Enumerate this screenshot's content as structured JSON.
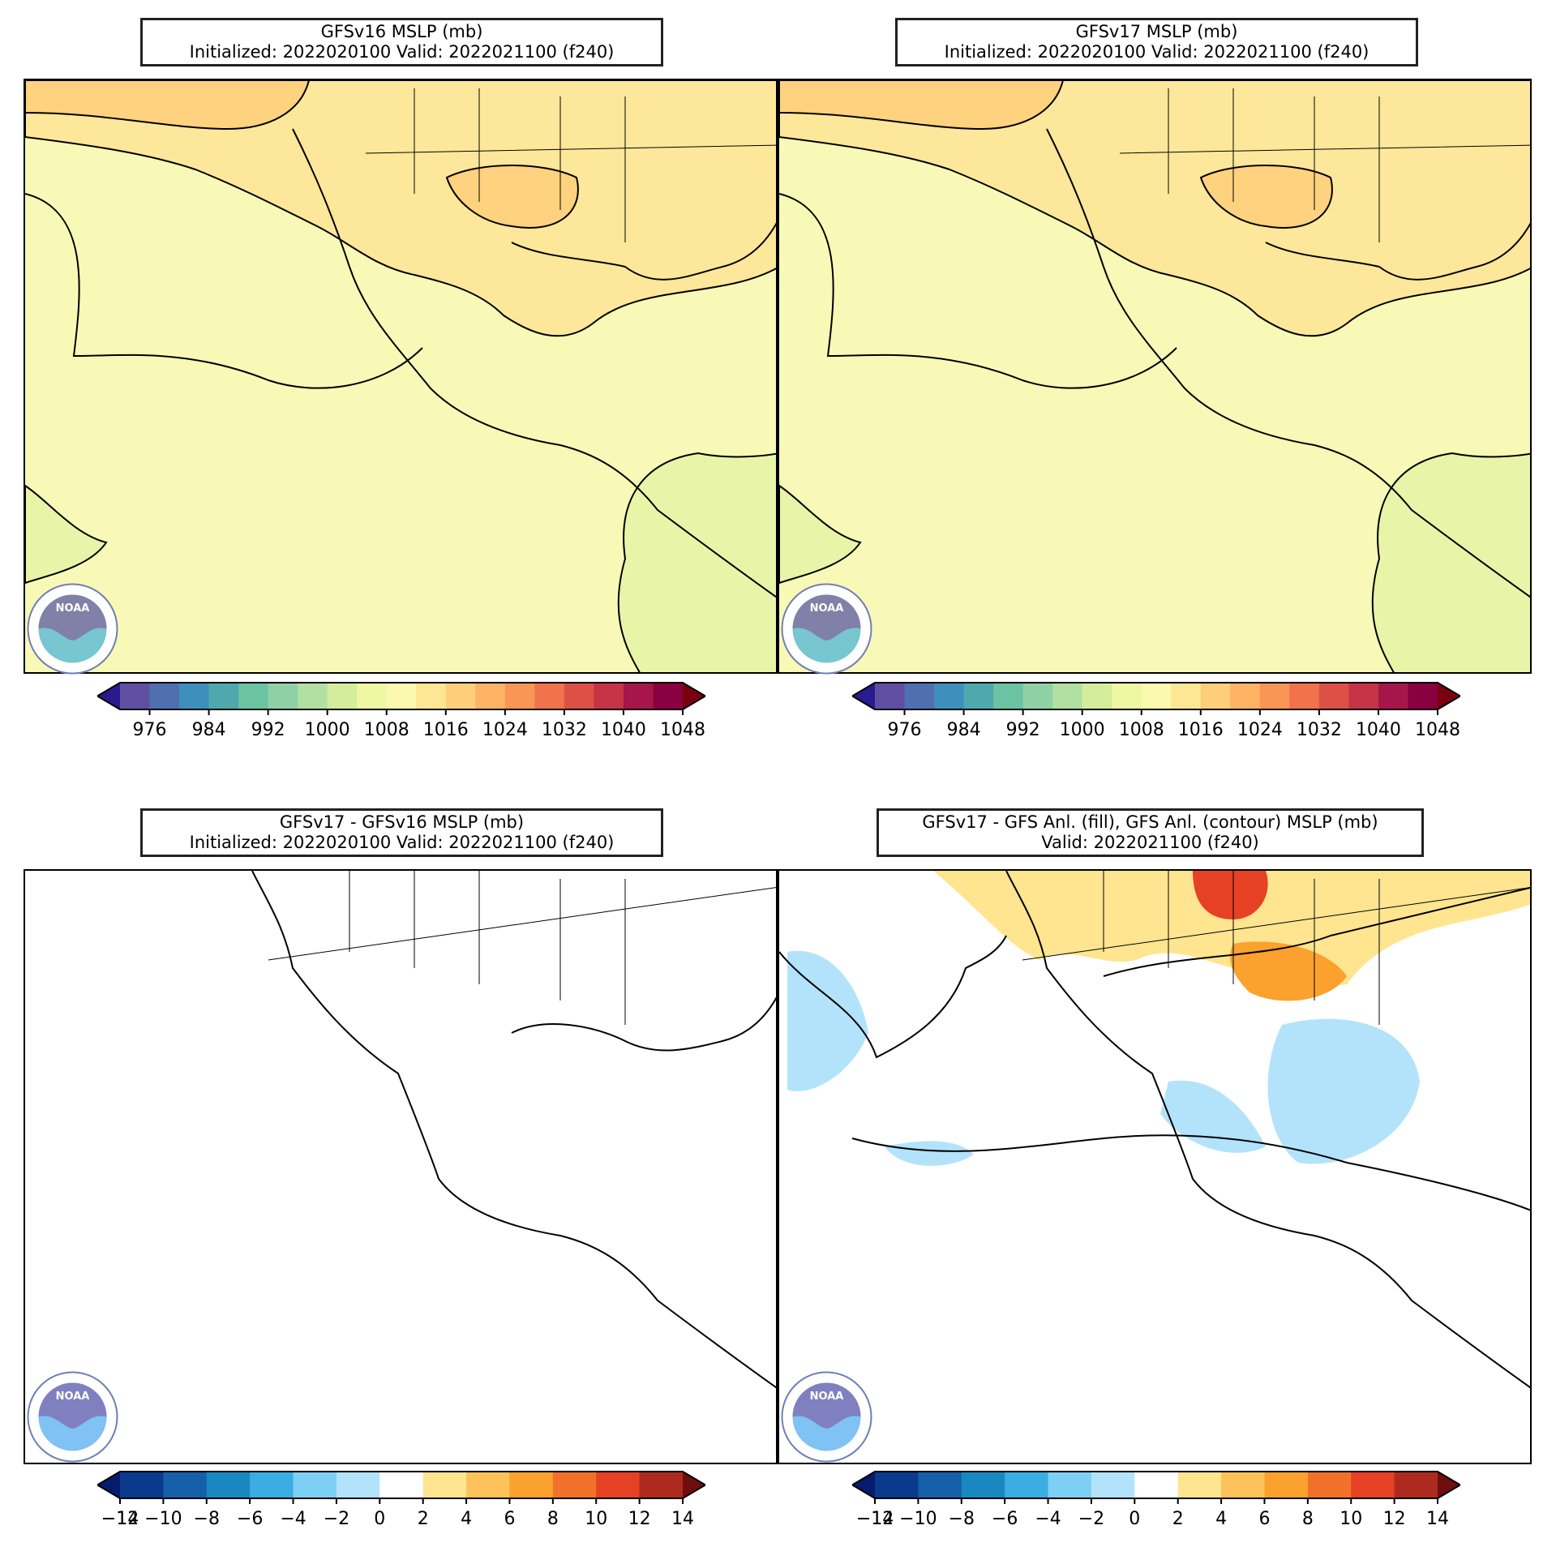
{
  "panels": [
    {
      "title_line1": "GFSv16 MSLP (mb)",
      "title_line2": "Initialized: 2022020100 Valid: 2022021100 (f240)"
    },
    {
      "title_line1": "GFSv17 MSLP (mb)",
      "title_line2": "Initialized: 2022020100 Valid: 2022021100 (f240)"
    },
    {
      "title_line1": "GFSv17 - GFSv16 MSLP (mb)",
      "title_line2": "Initialized: 2022020100 Valid: 2022021100 (f240)"
    },
    {
      "title_line1": "GFSv17 - GFS Anl. (fill), GFS Anl. (contour) MSLP (mb)",
      "title_line2": "Valid: 2022021100 (f240)"
    }
  ],
  "logo_text": "NOAA",
  "colorbars": {
    "mslp": {
      "colors": [
        "#5e4fa2",
        "#4f6fb1",
        "#3f8fbd",
        "#4fa8ad",
        "#6cc3a4",
        "#8fd1a4",
        "#b2e0a2",
        "#d3ed9c",
        "#eef7a4",
        "#fbf8b0",
        "#fde794",
        "#fecf78",
        "#fdb363",
        "#f99555",
        "#f0734b",
        "#dd5045",
        "#c63447",
        "#a6164a",
        "#8a0040"
      ],
      "under": "#2a1a8f",
      "over": "#7a0010",
      "ticks": [
        "976",
        "984",
        "992",
        "1000",
        "1008",
        "1016",
        "1024",
        "1032",
        "1040",
        "1048"
      ]
    },
    "diff": {
      "colors": [
        "#0a3a8c",
        "#1560a8",
        "#1a88c0",
        "#3aaee0",
        "#7ecff4",
        "#b3e3fb",
        "#ffffff",
        "#ffe590",
        "#fdc35a",
        "#fba12e",
        "#f2712a",
        "#e64025",
        "#ad2a1f"
      ],
      "under": "#061a6e",
      "over": "#6e0e0e",
      "ticks": [
        "−14",
        "−12",
        "−10",
        "−8",
        "−6",
        "−4",
        "−2",
        "0",
        "2",
        "4",
        "6",
        "8",
        "10",
        "12",
        "14"
      ]
    }
  }
}
